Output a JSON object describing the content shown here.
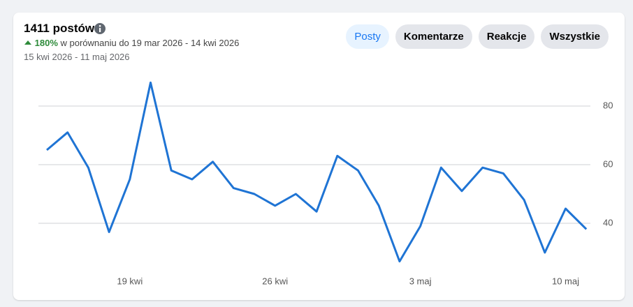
{
  "chart_data": {
    "type": "line",
    "title": "1411 postów",
    "categories": [
      null,
      null,
      null,
      null,
      "19 kwi",
      null,
      null,
      null,
      null,
      null,
      null,
      "26 kwi",
      null,
      null,
      null,
      null,
      null,
      null,
      "3 maj",
      null,
      null,
      null,
      null,
      null,
      null,
      "10 maj",
      null
    ],
    "series": [
      {
        "color": "#1f74d4",
        "values": [
          65,
          71,
          59,
          37,
          55,
          88,
          58,
          55,
          61,
          52,
          50,
          46,
          50,
          44,
          63,
          58,
          46,
          27,
          39,
          59,
          51,
          59,
          57,
          48,
          30,
          45,
          38
        ]
      }
    ],
    "ylim": [
      24,
      92
    ],
    "yticks": [
      40,
      60,
      80
    ],
    "grid": true
  },
  "header": {
    "change": "180%",
    "comparison": "w porównaniu do 19 mar 2026 - 14 kwi 2026",
    "date_range": "15 kwi 2026 - 11 maj 2026"
  },
  "tabs": [
    "Posty",
    "Komentarze",
    "Reakcje",
    "Wszystkie"
  ]
}
